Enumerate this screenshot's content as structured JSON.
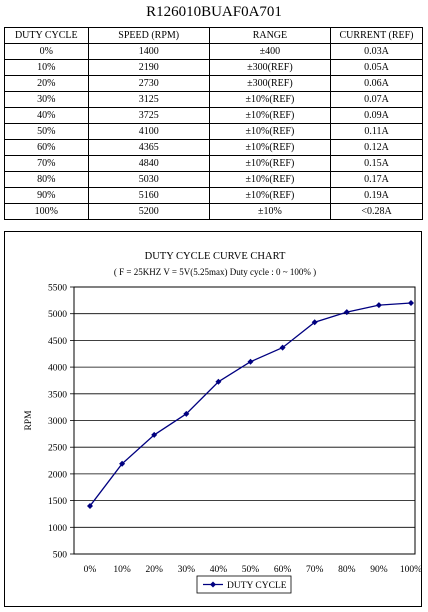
{
  "part_number": "R126010BUAF0A701",
  "table": {
    "headers": [
      "DUTY CYCLE",
      "SPEED (RPM)",
      "RANGE",
      "CURRENT (REF)"
    ],
    "rows": [
      [
        "0%",
        "1400",
        "±400",
        "0.03A"
      ],
      [
        "10%",
        "2190",
        "±300(REF)",
        "0.05A"
      ],
      [
        "20%",
        "2730",
        "±300(REF)",
        "0.06A"
      ],
      [
        "30%",
        "3125",
        "±10%(REF)",
        "0.07A"
      ],
      [
        "40%",
        "3725",
        "±10%(REF)",
        "0.09A"
      ],
      [
        "50%",
        "4100",
        "±10%(REF)",
        "0.11A"
      ],
      [
        "60%",
        "4365",
        "±10%(REF)",
        "0.12A"
      ],
      [
        "70%",
        "4840",
        "±10%(REF)",
        "0.15A"
      ],
      [
        "80%",
        "5030",
        "±10%(REF)",
        "0.17A"
      ],
      [
        "90%",
        "5160",
        "±10%(REF)",
        "0.19A"
      ],
      [
        "100%",
        "5200",
        "±10%",
        "<0.28A"
      ]
    ]
  },
  "chart_data": {
    "type": "line",
    "title": "DUTY CYCLE CURVE CHART",
    "subtitle": "( F = 25KHZ   V = 5V(5.25max)   Duty  cycle : 0 ~ 100% )",
    "xlabel": "",
    "ylabel": "RPM",
    "categories": [
      "0%",
      "10%",
      "20%",
      "30%",
      "40%",
      "50%",
      "60%",
      "70%",
      "80%",
      "90%",
      "100%"
    ],
    "series": [
      {
        "name": "DUTY  CYCLE",
        "values": [
          1400,
          2190,
          2730,
          3125,
          3725,
          4100,
          4365,
          4840,
          5030,
          5160,
          5200
        ],
        "color": "#000080"
      }
    ],
    "ylim": [
      500,
      5500
    ],
    "yticks": [
      500,
      1000,
      1500,
      2000,
      2500,
      3000,
      3500,
      4000,
      4500,
      5000,
      5500
    ],
    "grid": true,
    "legend_position": "bottom"
  }
}
